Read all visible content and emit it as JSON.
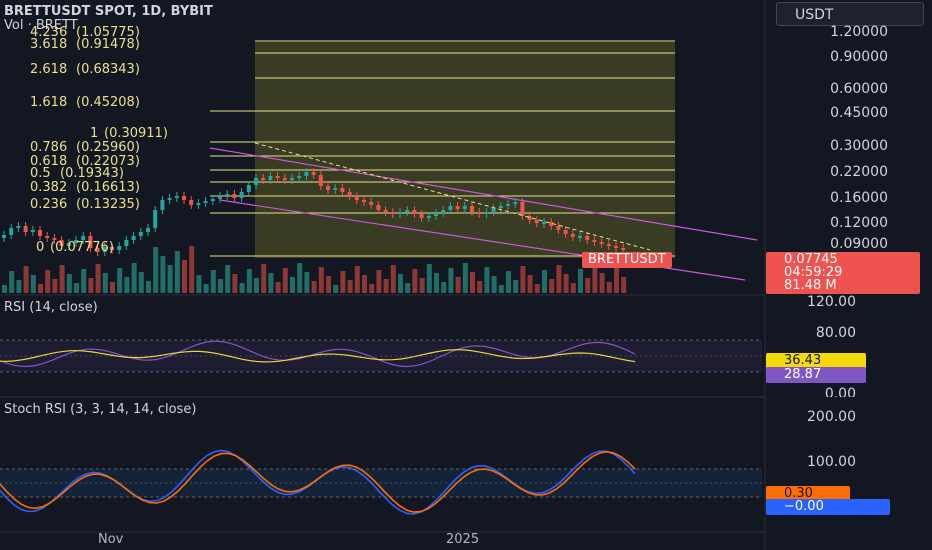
{
  "header": {
    "symbol_line": "BRETTUSDT SPOT, 1D, BYBIT",
    "volume_line": "Vol · BRETT",
    "currency": "USDT"
  },
  "fib_levels": [
    {
      "ratio": "4.236",
      "value": "(1.05775)"
    },
    {
      "ratio": "3.618",
      "value": "(0.91478)"
    },
    {
      "ratio": "2.618",
      "value": "(0.68343)"
    },
    {
      "ratio": "1.618",
      "value": "(0.45208)"
    },
    {
      "ratio": "1",
      "value": "(0.30911)"
    },
    {
      "ratio": "0.786",
      "value": "(0.25960)"
    },
    {
      "ratio": "0.618",
      "value": "(0.22073)"
    },
    {
      "ratio": "0.5",
      "value": "(0.19343)"
    },
    {
      "ratio": "0.382",
      "value": "(0.16613)"
    },
    {
      "ratio": "0.236",
      "value": "(0.13235)"
    },
    {
      "ratio": "0",
      "value": "(0.07776)"
    }
  ],
  "price_axis": [
    "1.20000",
    "0.90000",
    "0.60000",
    "0.45000",
    "0.30000",
    "0.22000",
    "0.16000",
    "0.12000",
    "0.09000"
  ],
  "price_tags": {
    "symbol_tag": "BRETTUSDT",
    "last_price": "0.07745",
    "countdown": "04:59:29",
    "volume": "81.48 M"
  },
  "rsi": {
    "title": "RSI (14, close)",
    "axis": [
      "120.00",
      "80.00",
      "0.00"
    ],
    "value": "36.43",
    "ma_value": "28.87"
  },
  "stoch": {
    "title": "Stoch RSI (3, 3, 14, 14, close)",
    "axis": [
      "200.00",
      "100.00"
    ],
    "k_value": "0.30",
    "d_value": "−0.00"
  },
  "time_axis": [
    "Nov",
    "2025"
  ],
  "colors": {
    "background": "#131722",
    "up": "#26a69a",
    "down": "#ef5350",
    "fib": "#e8e08a",
    "channel": "#c45ad6",
    "rsi": "#7e57c2",
    "rsi_ma": "#e8d33a",
    "stoch_k": "#2962ff",
    "stoch_d": "#ff6d00"
  }
}
